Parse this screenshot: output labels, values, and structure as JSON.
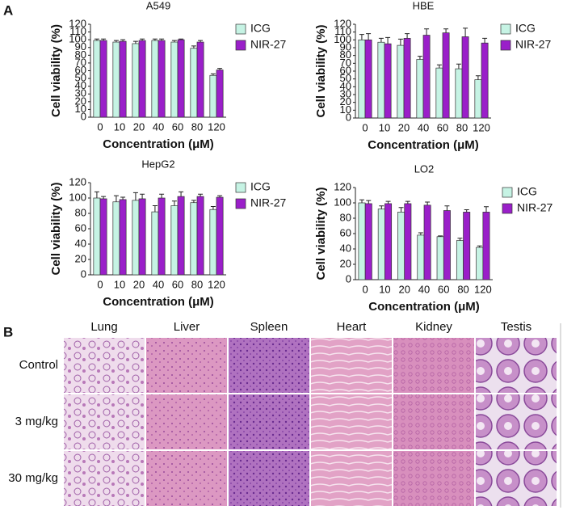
{
  "panel_labels": [
    "A",
    "B"
  ],
  "chart_data": [
    {
      "type": "bar",
      "title": "A549",
      "xlabel": "Concentration (μM)",
      "ylabel": "Cell viability (%)",
      "categories": [
        "0",
        "10",
        "20",
        "40",
        "60",
        "80",
        "120"
      ],
      "series": [
        {
          "name": "ICG",
          "color": "#c6f3e4",
          "values": [
            99,
            97,
            95,
            99,
            97,
            89,
            54
          ],
          "errors": [
            2,
            2,
            3,
            2,
            2,
            3,
            2
          ]
        },
        {
          "name": "NIR-27",
          "color": "#9a1fc9",
          "values": [
            99,
            98,
            99,
            99,
            100,
            97,
            61
          ],
          "errors": [
            2,
            2,
            2,
            2,
            1,
            2,
            2
          ]
        }
      ],
      "ylim": [
        0,
        120
      ],
      "yticks": [
        0,
        10,
        20,
        30,
        40,
        50,
        60,
        70,
        80,
        90,
        100,
        110,
        120
      ],
      "grid": false
    },
    {
      "type": "bar",
      "title": "HBE",
      "xlabel": "Concentration (μM)",
      "ylabel": "Cell viability (%)",
      "categories": [
        "0",
        "10",
        "20",
        "40",
        "60",
        "80",
        "120"
      ],
      "series": [
        {
          "name": "ICG",
          "color": "#c6f3e4",
          "values": [
            100,
            97,
            93,
            75,
            64,
            63,
            49
          ],
          "errors": [
            7,
            5,
            8,
            4,
            4,
            6,
            5
          ]
        },
        {
          "name": "NIR-27",
          "color": "#9a1fc9",
          "values": [
            100,
            95,
            102,
            106,
            109,
            104,
            96
          ],
          "errors": [
            8,
            8,
            6,
            8,
            5,
            11,
            6
          ]
        }
      ],
      "ylim": [
        0,
        120
      ],
      "yticks": [
        0,
        10,
        20,
        30,
        40,
        50,
        60,
        70,
        80,
        90,
        100,
        110,
        120
      ],
      "grid": false
    },
    {
      "type": "bar",
      "title": "HepG2",
      "xlabel": "Concentration (μM)",
      "ylabel": "Cell viability (%)",
      "categories": [
        "0",
        "10",
        "20",
        "40",
        "60",
        "80",
        "120"
      ],
      "series": [
        {
          "name": "ICG",
          "color": "#c6f3e4",
          "values": [
            100,
            95,
            97,
            82,
            90,
            94,
            85
          ],
          "errors": [
            8,
            8,
            10,
            8,
            6,
            3,
            4
          ]
        },
        {
          "name": "NIR-27",
          "color": "#9a1fc9",
          "values": [
            99,
            98,
            99,
            100,
            102,
            102,
            101
          ],
          "errors": [
            3,
            3,
            6,
            5,
            6,
            3,
            2
          ]
        }
      ],
      "ylim": [
        0,
        120
      ],
      "yticks": [
        0,
        20,
        40,
        60,
        80,
        100,
        120
      ],
      "grid": false
    },
    {
      "type": "bar",
      "title": "LO2",
      "xlabel": "Concentration (μM)",
      "ylabel": "Cell viability (%)",
      "categories": [
        "0",
        "10",
        "20",
        "40",
        "60",
        "80",
        "120"
      ],
      "series": [
        {
          "name": "ICG",
          "color": "#c6f3e4",
          "values": [
            100,
            92,
            88,
            58,
            56,
            51,
            42
          ],
          "errors": [
            4,
            4,
            6,
            3,
            1,
            3,
            2
          ]
        },
        {
          "name": "NIR-27",
          "color": "#9a1fc9",
          "values": [
            99,
            99,
            99,
            97,
            90,
            88,
            88
          ],
          "errors": [
            4,
            3,
            3,
            4,
            6,
            3,
            7
          ]
        }
      ],
      "ylim": [
        0,
        120
      ],
      "yticks": [
        0,
        20,
        40,
        60,
        80,
        100,
        120
      ],
      "grid": false
    }
  ],
  "histology": {
    "columns": [
      "Lung",
      "Liver",
      "Spleen",
      "Heart",
      "Kidney",
      "Testis"
    ],
    "rows": [
      "Control",
      "3 mg/kg",
      "30 mg/kg"
    ]
  }
}
